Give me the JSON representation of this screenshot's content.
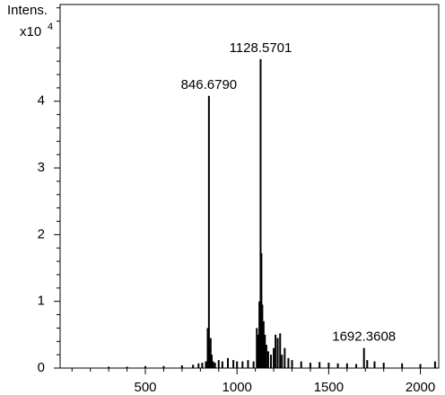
{
  "chart_data": {
    "type": "stick",
    "y_label": "Intens.",
    "y_scale_base": "x10",
    "y_scale_exponent": "4",
    "x": [
      300,
      400,
      500,
      600,
      700,
      760,
      790,
      810,
      830,
      840,
      846.679,
      850,
      856,
      862,
      870,
      880,
      900,
      920,
      950,
      980,
      1000,
      1030,
      1060,
      1090,
      1108,
      1115,
      1122,
      1128.5701,
      1133,
      1138,
      1145,
      1152,
      1160,
      1170,
      1185,
      1200,
      1210,
      1222,
      1235,
      1245,
      1260,
      1280,
      1300,
      1350,
      1400,
      1450,
      1500,
      1550,
      1600,
      1650,
      1692.3608,
      1710,
      1750,
      1800,
      1900,
      2000,
      2080
    ],
    "values": [
      0.02,
      0.02,
      0.03,
      0.03,
      0.04,
      0.05,
      0.07,
      0.08,
      0.1,
      0.6,
      4.08,
      0.3,
      0.45,
      0.2,
      0.1,
      0.08,
      0.12,
      0.1,
      0.15,
      0.12,
      0.1,
      0.1,
      0.12,
      0.1,
      0.6,
      0.5,
      1.0,
      4.63,
      1.72,
      0.95,
      0.7,
      0.5,
      0.35,
      0.25,
      0.2,
      0.3,
      0.5,
      0.45,
      0.52,
      0.2,
      0.3,
      0.15,
      0.12,
      0.1,
      0.08,
      0.09,
      0.08,
      0.07,
      0.07,
      0.06,
      0.3,
      0.12,
      0.1,
      0.08,
      0.07,
      0.06,
      0.1
    ],
    "color": "#000000",
    "annotations": [
      {
        "x": 846.679,
        "y": 4.08,
        "text": "846.6790"
      },
      {
        "x": 1128.5701,
        "y": 4.63,
        "text": "1128.5701"
      },
      {
        "x": 1692.3608,
        "y": 0.3,
        "text": "1692.3608"
      }
    ],
    "xlim": [
      35,
      2100
    ],
    "ylim": [
      0,
      5.45
    ],
    "xticks": [
      500,
      1000,
      1500,
      2000
    ],
    "yticks": [
      0,
      1,
      2,
      3,
      4
    ],
    "xminorticks": [
      100,
      200,
      300,
      400,
      600,
      700,
      800,
      900,
      1100,
      1200,
      1300,
      1400,
      1600,
      1700,
      1800,
      1900
    ],
    "yminorticks": [
      0.2,
      0.4,
      0.6,
      0.8,
      1.2,
      1.4,
      1.6,
      1.8,
      2.2,
      2.4,
      2.6,
      2.8,
      3.2,
      3.4,
      3.6,
      3.8,
      4.2,
      4.4,
      4.6,
      4.8,
      5.2,
      5.4
    ]
  }
}
